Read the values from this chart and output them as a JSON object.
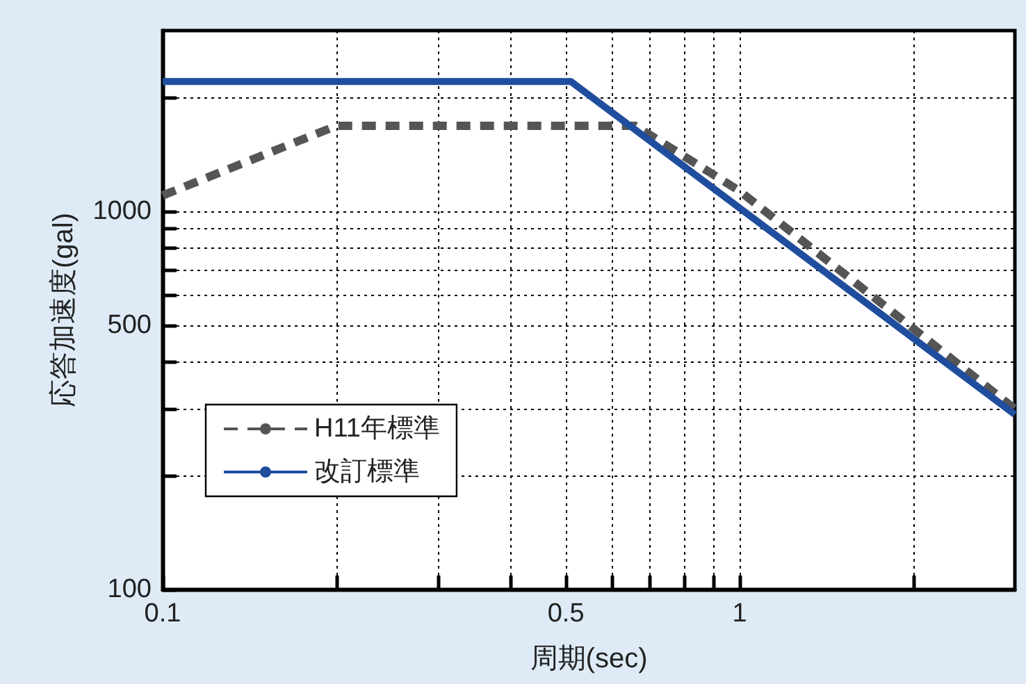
{
  "chart_data": {
    "type": "line",
    "xlabel": "周期(sec)",
    "ylabel": "応答加速度(gal)",
    "log": "xy",
    "grid": true,
    "legend": "bottom left",
    "marker": "none",
    "xlim": [
      0.1,
      3
    ],
    "ylim": [
      100,
      3000
    ],
    "xticks": [
      0.1,
      {
        "value": 0.2,
        "label": null
      },
      {
        "value": 0.3,
        "label": null
      },
      {
        "value": 0.4,
        "label": null
      },
      0.5,
      {
        "value": 0.6,
        "label": null
      },
      {
        "value": 0.7,
        "label": null
      },
      {
        "value": 0.8,
        "label": null
      },
      {
        "value": 0.9,
        "label": null
      },
      1,
      {
        "value": 2,
        "label": null
      }
    ],
    "yticks": [
      100,
      {
        "value": 200,
        "label": null
      },
      {
        "value": 300,
        "label": null
      },
      {
        "value": 400,
        "label": null
      },
      500,
      {
        "value": 600,
        "label": null
      },
      {
        "value": 700,
        "label": null
      },
      {
        "value": 800,
        "label": null
      },
      {
        "value": 900,
        "label": null
      },
      1000,
      {
        "value": 2000,
        "label": null
      }
    ],
    "series": [
      {
        "name": "H11年標準",
        "color": "#555555",
        "line_style": "dashed",
        "x": [
          0.1,
          0.2,
          0.66,
          1,
          3
        ],
        "values": [
          1100,
          1680,
          1680,
          1130,
          300
        ]
      },
      {
        "name": "改訂標準",
        "color": "#1f4e9e",
        "line_style": "solid",
        "x": [
          0.1,
          0.51,
          3
        ],
        "values": [
          2200,
          2200,
          290
        ]
      }
    ]
  }
}
